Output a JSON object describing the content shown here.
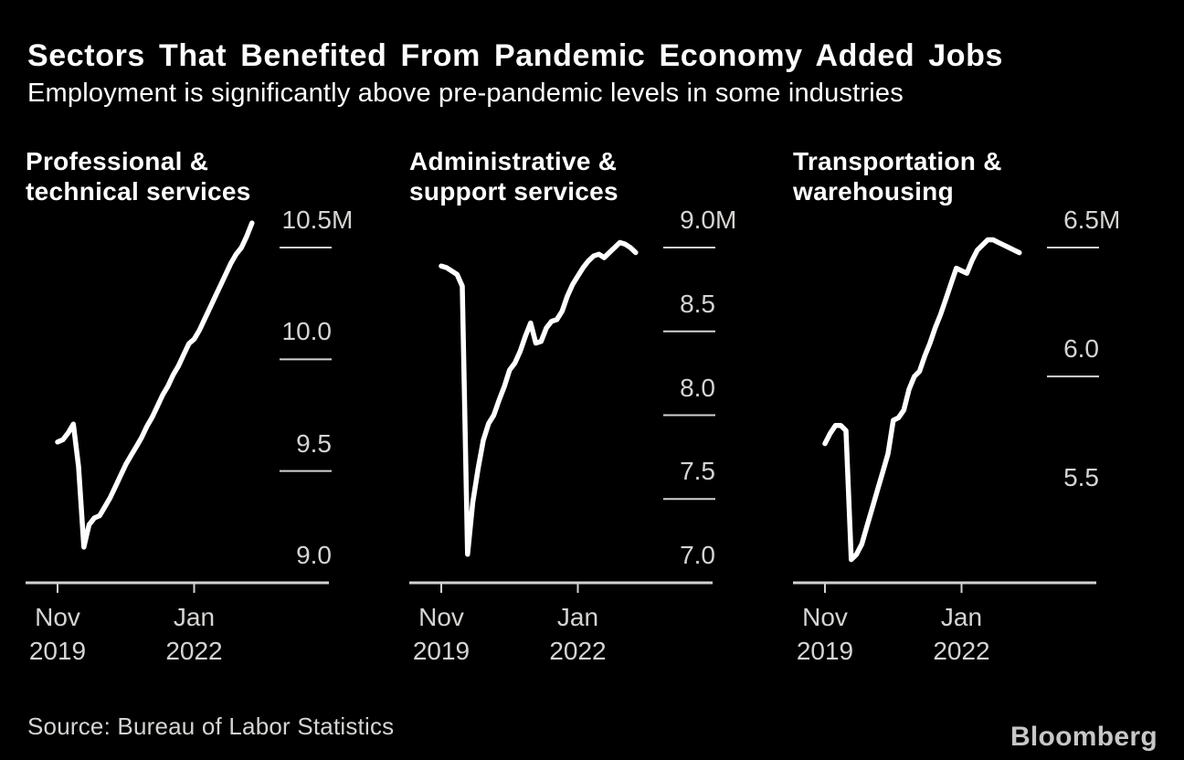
{
  "header": {
    "title": "Sectors That Benefited From Pandemic Economy Added Jobs",
    "subtitle": "Employment is significantly above pre-pandemic levels in some industries"
  },
  "footer": {
    "source": "Source: Bureau of Labor Statistics",
    "brand": "Bloomberg"
  },
  "colors": {
    "background": "#000000",
    "heading_text": "#ffffff",
    "axis_text": "#d6d4d2",
    "axis_line": "#d4d2d0",
    "data_line": "#ffffff",
    "brand_text": "#c7c7c7"
  },
  "chart_data": [
    {
      "type": "line",
      "title_lines": [
        "Professional &",
        "technical services"
      ],
      "series_name": "Professional & technical services employment",
      "unit": "millions of jobs",
      "frequency": "monthly",
      "x_range": [
        "Nov 2019",
        "Dec 2022"
      ],
      "x_ticks": [
        {
          "month": "Nov",
          "year": "2019",
          "index": 0
        },
        {
          "month": "Jan",
          "year": "2022",
          "index": 26
        }
      ],
      "y_ticks": [
        {
          "label": "10.5",
          "suffix": "M",
          "value": 10.5,
          "tick_line": true
        },
        {
          "label": "10.0",
          "suffix": "",
          "value": 10.0,
          "tick_line": true
        },
        {
          "label": "9.5",
          "suffix": "",
          "value": 9.5,
          "tick_line": true
        },
        {
          "label": "9.0",
          "suffix": "",
          "value": 9.0,
          "tick_line": false
        }
      ],
      "ylim": [
        9.0,
        10.5
      ],
      "values": [
        9.63,
        9.64,
        9.67,
        9.71,
        9.52,
        9.16,
        9.26,
        9.29,
        9.3,
        9.34,
        9.38,
        9.43,
        9.48,
        9.53,
        9.57,
        9.61,
        9.65,
        9.7,
        9.74,
        9.79,
        9.84,
        9.88,
        9.93,
        9.97,
        10.02,
        10.07,
        10.09,
        10.13,
        10.18,
        10.23,
        10.28,
        10.33,
        10.38,
        10.43,
        10.47,
        10.5,
        10.55,
        10.61
      ]
    },
    {
      "type": "line",
      "title_lines": [
        "Administrative &",
        "support services"
      ],
      "series_name": "Administrative & support services employment",
      "unit": "millions of jobs",
      "frequency": "monthly",
      "x_range": [
        "Nov 2019",
        "Dec 2022"
      ],
      "x_ticks": [
        {
          "month": "Nov",
          "year": "2019",
          "index": 0
        },
        {
          "month": "Jan",
          "year": "2022",
          "index": 26
        }
      ],
      "y_ticks": [
        {
          "label": "9.0",
          "suffix": "M",
          "value": 9.0,
          "tick_line": true
        },
        {
          "label": "8.5",
          "suffix": "",
          "value": 8.5,
          "tick_line": true
        },
        {
          "label": "8.0",
          "suffix": "",
          "value": 8.0,
          "tick_line": true
        },
        {
          "label": "7.5",
          "suffix": "",
          "value": 7.5,
          "tick_line": true
        },
        {
          "label": "7.0",
          "suffix": "",
          "value": 7.0,
          "tick_line": false
        }
      ],
      "ylim": [
        7.0,
        9.0
      ],
      "values": [
        8.89,
        8.88,
        8.86,
        8.84,
        8.77,
        7.17,
        7.48,
        7.68,
        7.85,
        7.95,
        8.0,
        8.09,
        8.17,
        8.27,
        8.31,
        8.38,
        8.47,
        8.55,
        8.43,
        8.44,
        8.52,
        8.56,
        8.57,
        8.62,
        8.71,
        8.78,
        8.83,
        8.88,
        8.92,
        8.95,
        8.96,
        8.94,
        8.97,
        9.0,
        9.03,
        9.02,
        9.0,
        8.97
      ]
    },
    {
      "type": "line",
      "title_lines": [
        "Transportation &",
        "warehousing"
      ],
      "series_name": "Transportation & warehousing employment",
      "unit": "millions of jobs",
      "frequency": "monthly",
      "x_range": [
        "Nov 2019",
        "Dec 2022"
      ],
      "x_ticks": [
        {
          "month": "Nov",
          "year": "2019",
          "index": 0
        },
        {
          "month": "Jan",
          "year": "2022",
          "index": 26
        }
      ],
      "y_ticks": [
        {
          "label": "6.5",
          "suffix": "M",
          "value": 6.5,
          "tick_line": true
        },
        {
          "label": "6.0",
          "suffix": "",
          "value": 6.0,
          "tick_line": true
        },
        {
          "label": "5.5",
          "suffix": "",
          "value": 5.5,
          "tick_line": false
        }
      ],
      "ylim": [
        5.2,
        6.5
      ],
      "values": [
        5.74,
        5.78,
        5.81,
        5.81,
        5.79,
        5.29,
        5.31,
        5.35,
        5.42,
        5.49,
        5.56,
        5.63,
        5.7,
        5.83,
        5.84,
        5.87,
        5.95,
        6.0,
        6.02,
        6.08,
        6.13,
        6.19,
        6.24,
        6.3,
        6.36,
        6.42,
        6.41,
        6.4,
        6.45,
        6.49,
        6.51,
        6.53,
        6.53,
        6.52,
        6.51,
        6.5,
        6.49,
        6.48
      ]
    }
  ]
}
